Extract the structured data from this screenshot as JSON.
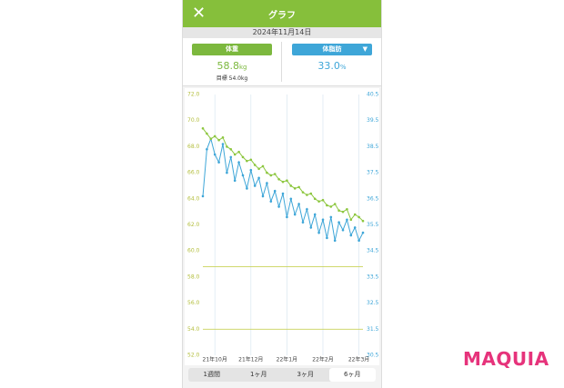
{
  "header": {
    "title": "グラフ",
    "date": "2024年11月14日"
  },
  "summary": {
    "weight_button": "体重",
    "fat_button": "体脂肪",
    "weight_value": "58.8",
    "weight_unit": "kg",
    "goal": "目標 54.0kg",
    "fat_value": "33.0",
    "fat_unit": "%"
  },
  "tabs": [
    "1週間",
    "1ヶ月",
    "3ヶ月",
    "6ヶ月"
  ],
  "logo": "MAQUIA",
  "chart_data": {
    "type": "line",
    "xlim": [
      0,
      40
    ],
    "xticks": [
      {
        "value": 3,
        "label": "21年10月"
      },
      {
        "value": 12,
        "label": "21年12月"
      },
      {
        "value": 21,
        "label": "22年1月"
      },
      {
        "value": 30,
        "label": "22年2月"
      },
      {
        "value": 39,
        "label": "22年3月"
      }
    ],
    "ylim": [
      52,
      72
    ],
    "yticks": [
      {
        "value": 52,
        "label": "52.0"
      },
      {
        "value": 54,
        "label": "54.0"
      },
      {
        "value": 56,
        "label": "56.0"
      },
      {
        "value": 58,
        "label": "58.0"
      },
      {
        "value": 60,
        "label": "60.0"
      },
      {
        "value": 62,
        "label": "62.0"
      },
      {
        "value": 64,
        "label": "64.0"
      },
      {
        "value": 66,
        "label": "66.0"
      },
      {
        "value": 68,
        "label": "68.0"
      },
      {
        "value": 70,
        "label": "70.0"
      },
      {
        "value": 72,
        "label": "72.0"
      }
    ],
    "y2lim": [
      30.5,
      40.5
    ],
    "y2ticks": [
      30.5,
      31.5,
      32.5,
      33.5,
      34.5,
      35.5,
      36.5,
      37.5,
      38.5,
      39.5,
      40.5
    ],
    "reference_lines": [
      58.8,
      54.0
    ],
    "grid": true,
    "series": [
      {
        "name": "体重",
        "color": "#8cc63e",
        "values": [
          69.4,
          69.0,
          68.6,
          68.8,
          68.5,
          68.7,
          68.0,
          67.8,
          67.4,
          67.6,
          67.2,
          66.9,
          67.0,
          66.6,
          66.3,
          66.5,
          66.0,
          65.8,
          65.9,
          65.5,
          65.3,
          65.4,
          65.0,
          64.8,
          64.9,
          64.5,
          64.3,
          64.4,
          64.0,
          63.8,
          63.9,
          63.5,
          63.4,
          63.6,
          63.1,
          63.0,
          63.2,
          62.4,
          62.8,
          62.6,
          62.3
        ]
      },
      {
        "name": "体脂肪",
        "color": "#3ea6d8",
        "axis": "y2",
        "values": [
          36.6,
          38.4,
          38.8,
          38.2,
          37.9,
          38.6,
          37.5,
          38.1,
          37.2,
          37.9,
          37.4,
          36.9,
          37.6,
          37.0,
          37.3,
          36.6,
          37.1,
          36.4,
          36.8,
          36.2,
          36.7,
          35.8,
          36.5,
          35.9,
          36.3,
          35.6,
          36.1,
          35.4,
          35.9,
          35.2,
          35.7,
          35.0,
          35.8,
          34.9,
          35.6,
          35.3,
          35.7,
          35.1,
          35.4,
          34.9,
          35.2
        ]
      }
    ]
  }
}
